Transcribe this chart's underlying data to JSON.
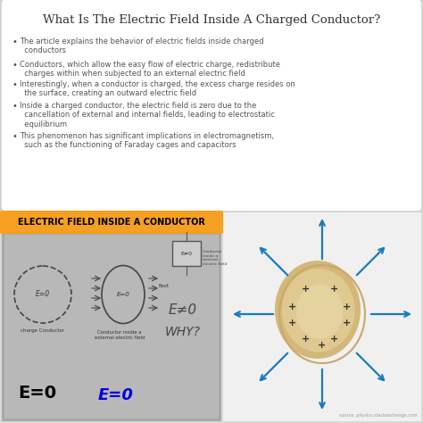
{
  "title": "What Is The Electric Field Inside A Charged Conductor?",
  "title_fontsize": 9.5,
  "title_color": "#333333",
  "bullet_points": [
    "The article explains the behavior of electric fields inside charged\n  conductors",
    "Conductors, which allow the easy flow of electric charge, redistribute\n  charges within when subjected to an external electric field",
    "Interestingly, when a conductor is charged, the excess charge resides on\n  the surface, creating an outward electric field",
    "Inside a charged conductor, the electric field is zero due to the\n  cancellation of external and internal fields, leading to electrostatic\n  equilibrium",
    "This phenomenon has significant implications in electromagnetism,\n  such as the functioning of Faraday cages and capacitors"
  ],
  "bullet_fontsize": 6.0,
  "bullet_color": "#555555",
  "banner_text": "ELECTRIC FIELD INSIDE A CONDUCTOR",
  "banner_bg": "#f5a020",
  "banner_text_color": "#000000",
  "banner_fontsize": 7.0,
  "arrow_color": "#1a7abf",
  "sphere_color_inner": "#e8d5a0",
  "sphere_color_outer": "#c8a86b",
  "plus_color": "#333333",
  "source_text": "source: physics.stackexchange.com",
  "e0_black_color": "#000000",
  "e0_blue_color": "#0000dd",
  "chalk_bg": "#a8a8a8",
  "chalk_inner": "#b8b8b8",
  "right_bg": "#f0f0f0",
  "top_box_bg": "#ffffff",
  "fig_bg": "#d8d8d8"
}
